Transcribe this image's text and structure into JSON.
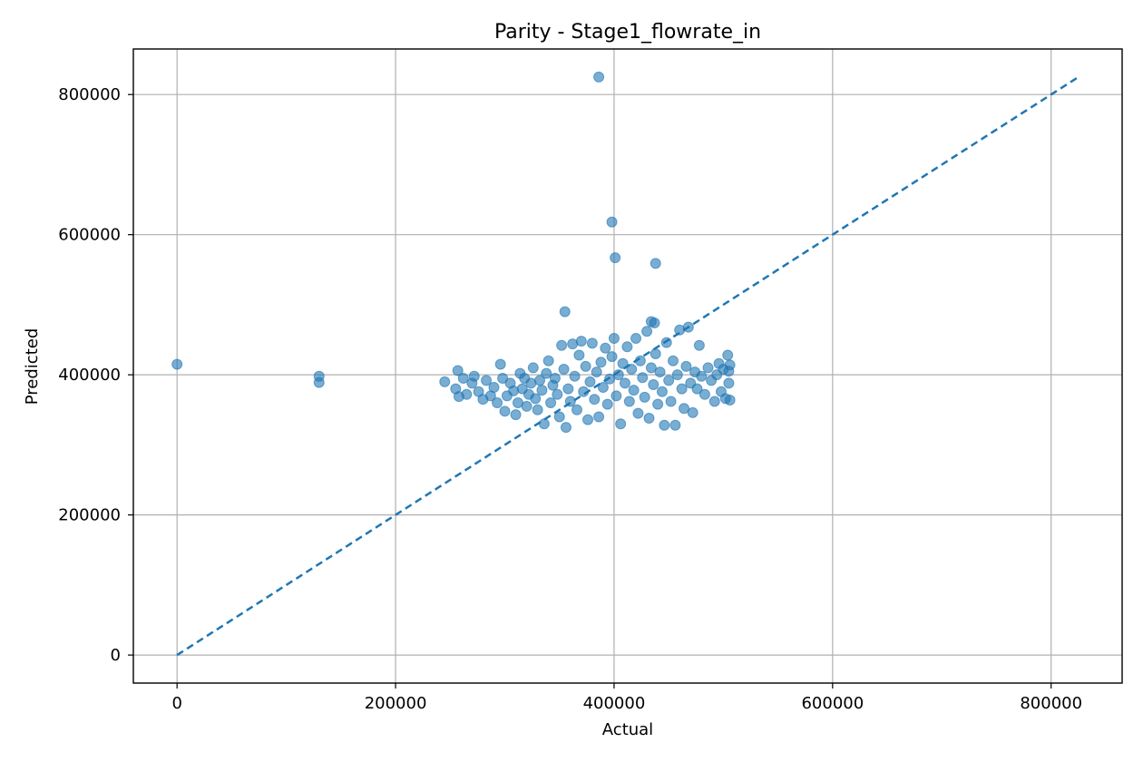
{
  "chart_data": {
    "type": "scatter",
    "title": "Parity - Stage1_flowrate_in",
    "xlabel": "Actual",
    "ylabel": "Predicted",
    "xlim": [
      -40000,
      865000
    ],
    "ylim": [
      -40000,
      865000
    ],
    "x_ticks": [
      0,
      200000,
      400000,
      600000,
      800000
    ],
    "y_ticks": [
      0,
      200000,
      400000,
      600000,
      800000
    ],
    "x_tick_labels": [
      "0",
      "200000",
      "400000",
      "600000",
      "800000"
    ],
    "y_tick_labels": [
      "0",
      "200000",
      "400000",
      "600000",
      "800000"
    ],
    "grid": true,
    "colors": {
      "points": "#1f77b4",
      "reference_line": "#1f77b4",
      "grid": "#b0b0b0"
    },
    "reference_line": {
      "style": "dashed",
      "from": [
        0,
        0
      ],
      "to": [
        825000,
        825000
      ]
    },
    "series": [
      {
        "points": [
          [
            0,
            415000
          ],
          [
            130000,
            398000
          ],
          [
            130000,
            389000
          ],
          [
            386000,
            825000
          ],
          [
            398000,
            618000
          ],
          [
            401000,
            567000
          ],
          [
            438000,
            559000
          ],
          [
            355000,
            490000
          ],
          [
            434000,
            476000
          ],
          [
            437000,
            474000
          ],
          [
            245000,
            390000
          ],
          [
            255000,
            380000
          ],
          [
            257000,
            406000
          ],
          [
            258000,
            369000
          ],
          [
            262000,
            395000
          ],
          [
            265000,
            372000
          ],
          [
            270000,
            388000
          ],
          [
            272000,
            398000
          ],
          [
            276000,
            376000
          ],
          [
            280000,
            365000
          ],
          [
            283000,
            392000
          ],
          [
            287000,
            370000
          ],
          [
            290000,
            382000
          ],
          [
            293000,
            360000
          ],
          [
            296000,
            415000
          ],
          [
            298000,
            395000
          ],
          [
            300000,
            348000
          ],
          [
            302000,
            370000
          ],
          [
            305000,
            388000
          ],
          [
            308000,
            377000
          ],
          [
            310000,
            343000
          ],
          [
            312000,
            360000
          ],
          [
            314000,
            402000
          ],
          [
            316000,
            380000
          ],
          [
            318000,
            395000
          ],
          [
            320000,
            355000
          ],
          [
            322000,
            372000
          ],
          [
            324000,
            388000
          ],
          [
            326000,
            410000
          ],
          [
            328000,
            366000
          ],
          [
            330000,
            350000
          ],
          [
            332000,
            392000
          ],
          [
            334000,
            378000
          ],
          [
            336000,
            330000
          ],
          [
            338000,
            402000
          ],
          [
            340000,
            420000
          ],
          [
            342000,
            360000
          ],
          [
            344000,
            385000
          ],
          [
            346000,
            395000
          ],
          [
            348000,
            372000
          ],
          [
            350000,
            340000
          ],
          [
            352000,
            442000
          ],
          [
            354000,
            408000
          ],
          [
            356000,
            325000
          ],
          [
            358000,
            380000
          ],
          [
            360000,
            362000
          ],
          [
            362000,
            444000
          ],
          [
            364000,
            398000
          ],
          [
            366000,
            350000
          ],
          [
            368000,
            428000
          ],
          [
            370000,
            448000
          ],
          [
            372000,
            376000
          ],
          [
            374000,
            412000
          ],
          [
            376000,
            336000
          ],
          [
            378000,
            390000
          ],
          [
            380000,
            445000
          ],
          [
            382000,
            365000
          ],
          [
            384000,
            404000
          ],
          [
            386000,
            340000
          ],
          [
            388000,
            418000
          ],
          [
            390000,
            382000
          ],
          [
            392000,
            438000
          ],
          [
            394000,
            358000
          ],
          [
            396000,
            394000
          ],
          [
            398000,
            426000
          ],
          [
            400000,
            452000
          ],
          [
            402000,
            370000
          ],
          [
            404000,
            400000
          ],
          [
            406000,
            330000
          ],
          [
            408000,
            416000
          ],
          [
            410000,
            388000
          ],
          [
            412000,
            440000
          ],
          [
            414000,
            362000
          ],
          [
            416000,
            408000
          ],
          [
            418000,
            378000
          ],
          [
            420000,
            452000
          ],
          [
            422000,
            345000
          ],
          [
            424000,
            420000
          ],
          [
            426000,
            396000
          ],
          [
            428000,
            368000
          ],
          [
            430000,
            462000
          ],
          [
            432000,
            338000
          ],
          [
            434000,
            410000
          ],
          [
            436000,
            386000
          ],
          [
            438000,
            430000
          ],
          [
            440000,
            358000
          ],
          [
            442000,
            404000
          ],
          [
            444000,
            376000
          ],
          [
            446000,
            328000
          ],
          [
            448000,
            446000
          ],
          [
            450000,
            392000
          ],
          [
            452000,
            362000
          ],
          [
            454000,
            420000
          ],
          [
            456000,
            328000
          ],
          [
            458000,
            400000
          ],
          [
            460000,
            464000
          ],
          [
            462000,
            380000
          ],
          [
            464000,
            352000
          ],
          [
            466000,
            412000
          ],
          [
            468000,
            468000
          ],
          [
            470000,
            388000
          ],
          [
            472000,
            346000
          ],
          [
            474000,
            404000
          ],
          [
            476000,
            380000
          ],
          [
            478000,
            442000
          ],
          [
            480000,
            398000
          ],
          [
            483000,
            372000
          ],
          [
            486000,
            410000
          ],
          [
            489000,
            392000
          ],
          [
            492000,
            362000
          ],
          [
            494000,
            400000
          ],
          [
            496000,
            416000
          ],
          [
            498000,
            376000
          ],
          [
            500000,
            408000
          ],
          [
            502000,
            366000
          ],
          [
            504000,
            428000
          ],
          [
            505000,
            388000
          ],
          [
            506000,
            364000
          ],
          [
            506000,
            414000
          ],
          [
            505000,
            405000
          ]
        ]
      }
    ]
  }
}
